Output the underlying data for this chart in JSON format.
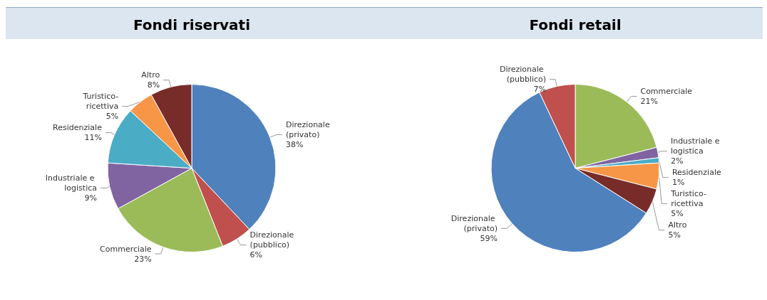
{
  "chart_data": [
    {
      "type": "pie",
      "title": "Fondi riservati",
      "categories": [
        "Direzionale (privato)",
        "Direzionale (pubblico)",
        "Commerciale",
        "Industriale e logistica",
        "Residenziale",
        "Turistico-ricettiva",
        "Altro"
      ],
      "values": [
        38,
        6,
        23,
        9,
        11,
        5,
        8
      ],
      "value_labels": [
        "38%",
        "6%",
        "23%",
        "9%",
        "11%",
        "5%",
        "8%"
      ],
      "colors": [
        "#4f81bd",
        "#c0504d",
        "#9bbb59",
        "#8064a2",
        "#4bacc6",
        "#f79646",
        "#772c2a"
      ]
    },
    {
      "type": "pie",
      "title": "Fondi retail",
      "categories": [
        "Commerciale",
        "Industriale e logistica",
        "Residenziale",
        "Turistico-ricettiva",
        "Altro",
        "Direzionale (privato)",
        "Direzionale (pubblico)"
      ],
      "values": [
        21,
        2,
        1,
        5,
        5,
        59,
        7
      ],
      "value_labels": [
        "21%",
        "2%",
        "1%",
        "5%",
        "5%",
        "59%",
        "7%"
      ],
      "colors": [
        "#9bbb59",
        "#8064a2",
        "#4bacc6",
        "#f79646",
        "#772c2a",
        "#4f81bd",
        "#c0504d"
      ]
    }
  ]
}
